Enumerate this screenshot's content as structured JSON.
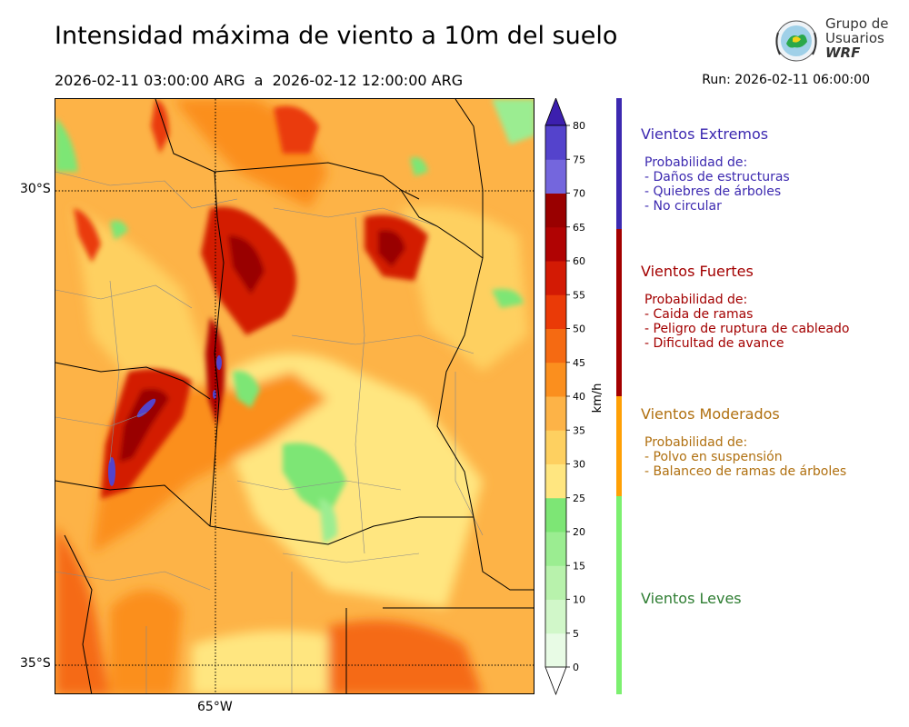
{
  "header": {
    "title": "Intensidad máxima de viento a 10m del suelo",
    "date_range": "2026-02-11 03:00:00 ARG  a  2026-02-12 12:00:00 ARG",
    "run": "Run: 2026-02-11 06:00:00"
  },
  "logo": {
    "line1": "Grupo de",
    "line2": "Usuarios",
    "line3": "WRF"
  },
  "map": {
    "lat_labels": [
      "30°S",
      "35°S"
    ],
    "lon_labels": [
      "65°W"
    ]
  },
  "colorbar": {
    "unit": "km/h",
    "ticks": [
      "0",
      "5",
      "10",
      "15",
      "20",
      "25",
      "30",
      "35",
      "40",
      "45",
      "50",
      "55",
      "60",
      "65",
      "70",
      "75",
      "80"
    ],
    "colors": [
      "#e8fbe5",
      "#d1f7c9",
      "#b8f2ac",
      "#9bed91",
      "#7de675",
      "#ffe680",
      "#fed060",
      "#fdb347",
      "#fb8f1e",
      "#f56a12",
      "#ea3a07",
      "#d31a04",
      "#b00303",
      "#990000",
      "#7466dd",
      "#5443cc",
      "#4027b8"
    ],
    "extend_color": "#3c1fae"
  },
  "legend": {
    "categories": [
      {
        "title": "Vientos Extremos",
        "color": "#3c29b0",
        "lines": [
          "Probabilidad de:",
          "- Daños de estructuras",
          "- Quiebres de árboles",
          "- No circular"
        ]
      },
      {
        "title": "Vientos Fuertes",
        "color": "#a30000",
        "lines": [
          "Probabilidad de:",
          "- Caida de ramas",
          "- Peligro de ruptura de cableado",
          "- Dificultad de avance"
        ]
      },
      {
        "title": "Vientos Moderados",
        "color": "#b07010",
        "bar_color": "#ffa005",
        "lines": [
          "Probabilidad de:",
          "- Polvo en suspensión",
          "- Balanceo de ramas de árboles"
        ]
      },
      {
        "title": "Vientos Leves",
        "color": "#2e7d32",
        "bar_color": "#7cf070",
        "lines": []
      }
    ]
  }
}
